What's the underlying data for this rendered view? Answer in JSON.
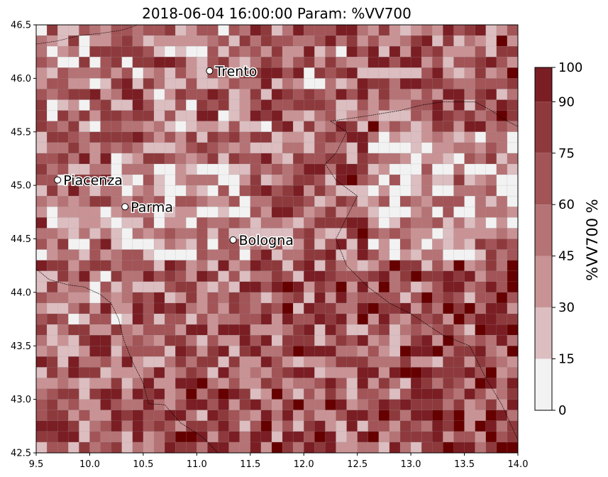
{
  "chart_data": {
    "type": "heatmap",
    "title": "2018-06-04 16:00:00 Param: %VV700",
    "xlim": [
      9.5,
      14.0
    ],
    "ylim": [
      42.5,
      46.5
    ],
    "x_ticks": [
      "9.5",
      "10.0",
      "10.5",
      "11.0",
      "11.5",
      "12.0",
      "12.5",
      "13.0",
      "13.5",
      "14.0"
    ],
    "y_ticks": [
      "42.5",
      "43.0",
      "43.5",
      "44.0",
      "44.5",
      "45.0",
      "45.5",
      "46.0",
      "46.5"
    ],
    "grid": true,
    "grid_cols": 45,
    "grid_rows": 40,
    "cell_values_note_free": true,
    "colorbar": {
      "label": "%VV700  %",
      "boundaries": [
        0,
        15,
        30,
        45,
        60,
        75,
        90,
        100
      ],
      "tick_labels": [
        "0",
        "15",
        "30",
        "45",
        "60",
        "75",
        "90",
        "100"
      ],
      "colors": [
        "#f2f2f2",
        "#dcbdc0",
        "#c99395",
        "#b57375",
        "#a25457",
        "#8e3a3d",
        "#7a1e24",
        "#660000"
      ]
    },
    "cities": [
      {
        "name": "Trento",
        "lon": 11.12,
        "lat": 46.07
      },
      {
        "name": "Piacenza",
        "lon": 9.7,
        "lat": 45.05
      },
      {
        "name": "Parma",
        "lon": 10.33,
        "lat": 44.8
      },
      {
        "name": "Bologna",
        "lon": 11.34,
        "lat": 44.49
      }
    ]
  }
}
